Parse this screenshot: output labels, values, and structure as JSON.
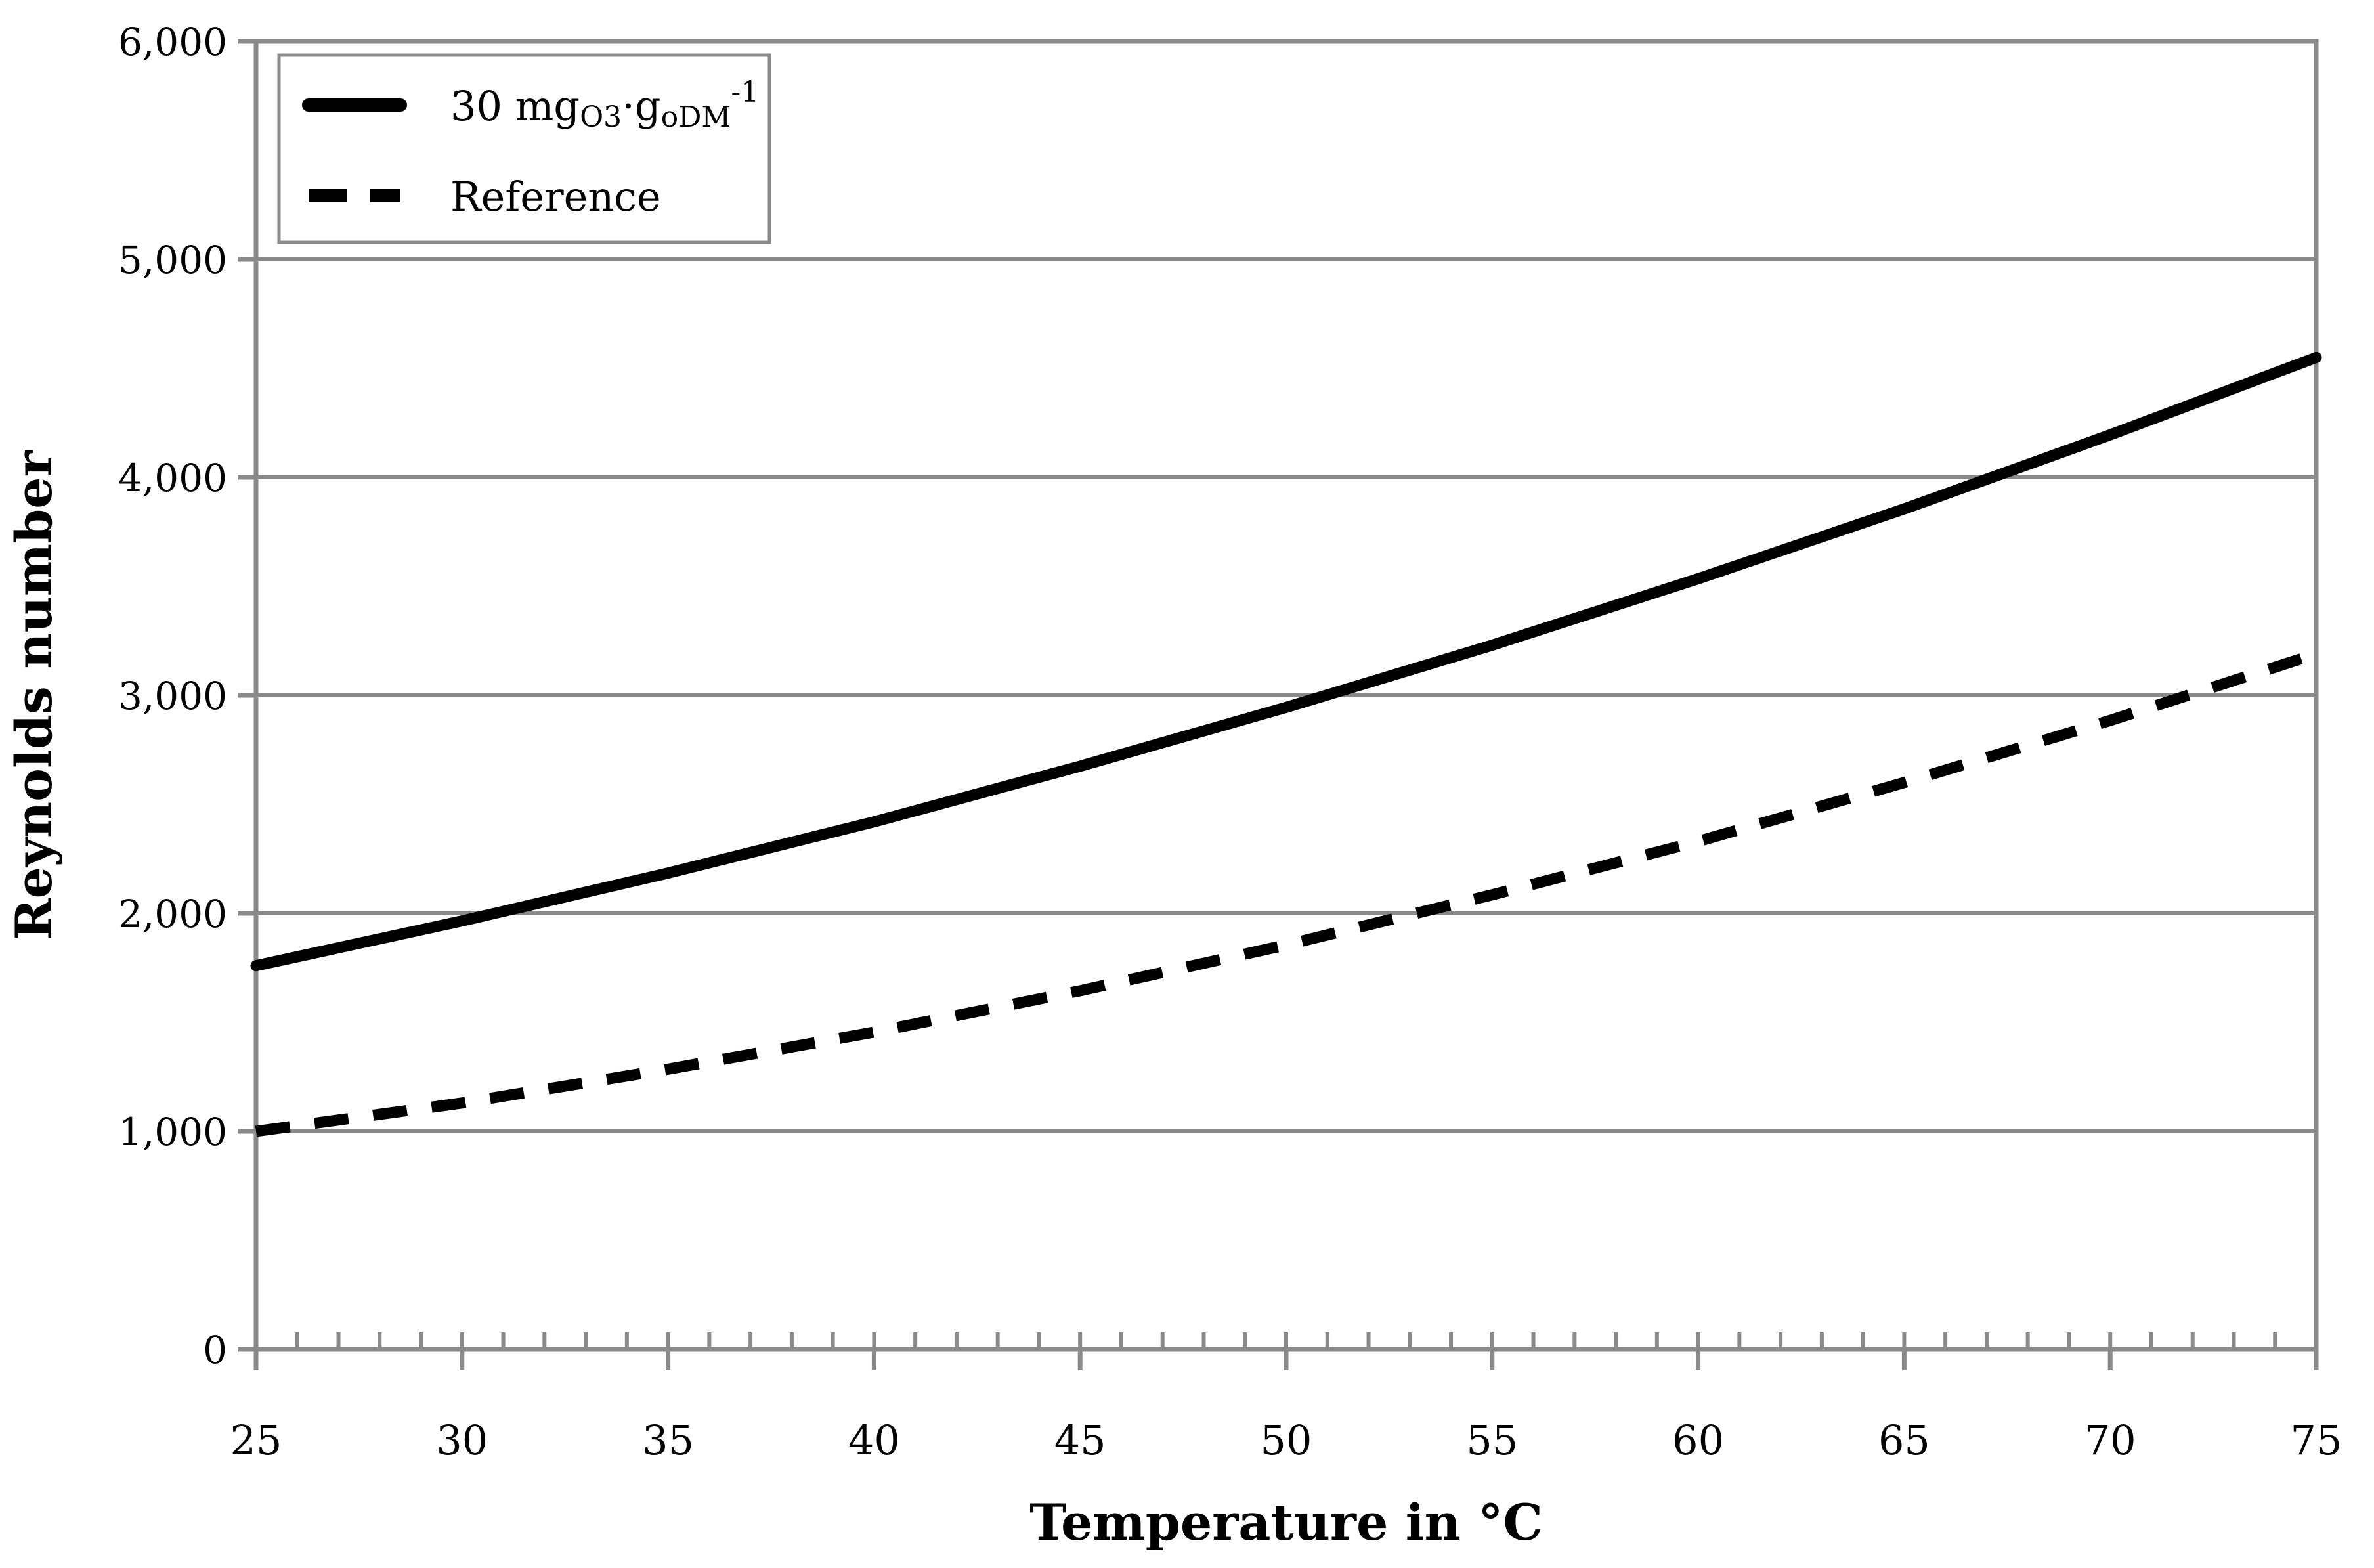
{
  "chart_data": {
    "type": "line",
    "title": "",
    "xlabel": "Temperature in °C",
    "ylabel": "Reynolds number",
    "xlim": [
      25,
      75
    ],
    "ylim": [
      0,
      6000
    ],
    "x_major_ticks": [
      25,
      30,
      35,
      40,
      45,
      50,
      55,
      60,
      65,
      70,
      75
    ],
    "x_minor_tick_step": 1,
    "y_major_ticks": [
      0,
      1000,
      2000,
      3000,
      4000,
      5000,
      6000
    ],
    "y_tick_labels": [
      "0",
      "1,000",
      "2,000",
      "3,000",
      "4,000",
      "5,000",
      "6,000"
    ],
    "grid": "horizontal-only",
    "legend_position": "top-left",
    "x": [
      25,
      30,
      35,
      40,
      45,
      50,
      55,
      60,
      65,
      70,
      75
    ],
    "series": [
      {
        "name": "30 mgO3·goDM-1",
        "line_style": "solid",
        "values": [
          1760,
          1965,
          2185,
          2420,
          2675,
          2945,
          3230,
          3535,
          3855,
          4195,
          4550
        ]
      },
      {
        "name": "Reference",
        "line_style": "dashed",
        "values": [
          1000,
          1130,
          1285,
          1455,
          1645,
          1855,
          2085,
          2330,
          2600,
          2885,
          3190
        ]
      }
    ],
    "colors": {
      "series_line": "#000000",
      "grid": "#8a8a8a",
      "axis": "#8a8a8a",
      "text": "#000000",
      "background": "#ffffff"
    }
  },
  "legend": {
    "entries": [
      {
        "prefix": "30 mg",
        "sub1": "O3",
        "mid": "·g",
        "sub2": "oDM",
        "sup": "-1"
      },
      {
        "label": "Reference"
      }
    ]
  }
}
